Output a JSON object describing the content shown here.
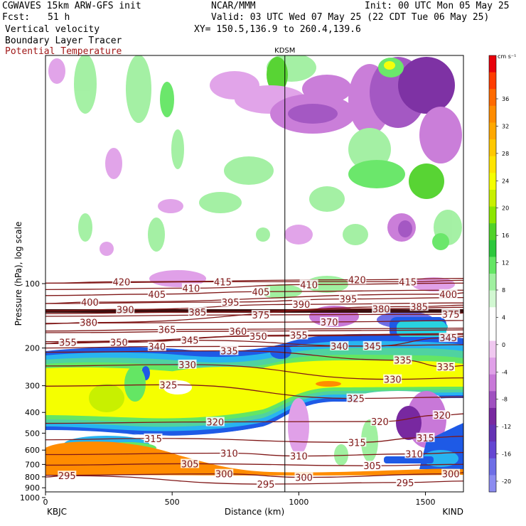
{
  "header": {
    "model": "CGWAVES 15km ARW-GFS init",
    "center": "NCAR/MMM",
    "init": "Init: 00 UTC Mon 05 May 25",
    "fcst_label": "Fcst:",
    "fcst_value": "51 h",
    "valid": "Valid: 03 UTC Wed 07 May 25 (22 CDT Tue 06 May 25)",
    "xy": "XY= 150.5,136.9 to 260.4,139.6",
    "field1": "Vertical velocity",
    "field2": "Boundary Layer Tracer",
    "field3": "Potential Temperature"
  },
  "chart_data": {
    "type": "heatmap",
    "title": "",
    "xlabel": "Distance (km)",
    "ylabel": "Pressure (hPa), log scale",
    "x_ticks": [
      "0",
      "500",
      "1000",
      "1500"
    ],
    "y_ticks": [
      "100",
      "200",
      "300",
      "400",
      "500",
      "600",
      "700",
      "800",
      "900",
      "1000"
    ],
    "xlim": [
      0,
      1650
    ],
    "ylog": true,
    "left_station": "KBJC",
    "right_station": "KIND",
    "marker_label": "KDSM",
    "marker_x_km": 945,
    "colorbar": {
      "units": "cm s⁻¹",
      "labels": [
        "36",
        "32",
        "28",
        "24",
        "20",
        "16",
        "12",
        "8",
        "4",
        "0",
        "-4",
        "-8",
        "-12",
        "-16",
        "-20"
      ],
      "colors": [
        "#e8000b",
        "#ff3c00",
        "#ff6a00",
        "#ff8c00",
        "#ffa800",
        "#ffc800",
        "#ffe400",
        "#f5ff00",
        "#c8f000",
        "#8ce600",
        "#50d22a",
        "#2cc83c",
        "#64e664",
        "#a0f0a0",
        "#d2f8d2",
        "#ffffff",
        "#ffffff",
        "#f0c8f0",
        "#e0a0e8",
        "#c878d8",
        "#a050c0",
        "#7828a0",
        "#6432b4",
        "#6446d2",
        "#6e6ee6",
        "#8c8cf0"
      ]
    },
    "theta_contours": [
      {
        "label": "420",
        "x_km": 300,
        "p": 98
      },
      {
        "label": "415",
        "x_km": 700,
        "p": 98
      },
      {
        "label": "420",
        "x_km": 1230,
        "p": 96
      },
      {
        "label": "415",
        "x_km": 1430,
        "p": 98
      },
      {
        "label": "410",
        "x_km": 575,
        "p": 105
      },
      {
        "label": "410",
        "x_km": 1040,
        "p": 101
      },
      {
        "label": "405",
        "x_km": 440,
        "p": 112
      },
      {
        "label": "405",
        "x_km": 850,
        "p": 109
      },
      {
        "label": "400",
        "x_km": 175,
        "p": 122
      },
      {
        "label": "400",
        "x_km": 1590,
        "p": 112
      },
      {
        "label": "395",
        "x_km": 730,
        "p": 122
      },
      {
        "label": "395",
        "x_km": 1195,
        "p": 118
      },
      {
        "label": "390",
        "x_km": 315,
        "p": 132
      },
      {
        "label": "390",
        "x_km": 1010,
        "p": 125
      },
      {
        "label": "385",
        "x_km": 600,
        "p": 136
      },
      {
        "label": "385",
        "x_km": 1475,
        "p": 128
      },
      {
        "label": "380",
        "x_km": 1325,
        "p": 131
      },
      {
        "label": "380",
        "x_km": 170,
        "p": 152
      },
      {
        "label": "375",
        "x_km": 850,
        "p": 140
      },
      {
        "label": "375",
        "x_km": 1600,
        "p": 139
      },
      {
        "label": "370",
        "x_km": 1120,
        "p": 151
      },
      {
        "label": "365",
        "x_km": 480,
        "p": 164
      },
      {
        "label": "360",
        "x_km": 760,
        "p": 167
      },
      {
        "label": "355",
        "x_km": 88,
        "p": 188
      },
      {
        "label": "355",
        "x_km": 1000,
        "p": 174
      },
      {
        "label": "350",
        "x_km": 290,
        "p": 188
      },
      {
        "label": "350",
        "x_km": 840,
        "p": 176
      },
      {
        "label": "345",
        "x_km": 570,
        "p": 184
      },
      {
        "label": "345",
        "x_km": 1290,
        "p": 196
      },
      {
        "label": "345",
        "x_km": 1590,
        "p": 179
      },
      {
        "label": "340",
        "x_km": 440,
        "p": 197
      },
      {
        "label": "340",
        "x_km": 1160,
        "p": 196
      },
      {
        "label": "335",
        "x_km": 725,
        "p": 206
      },
      {
        "label": "335",
        "x_km": 1410,
        "p": 228
      },
      {
        "label": "335",
        "x_km": 1580,
        "p": 245
      },
      {
        "label": "330",
        "x_km": 560,
        "p": 239
      },
      {
        "label": "330",
        "x_km": 1370,
        "p": 280
      },
      {
        "label": "325",
        "x_km": 485,
        "p": 297
      },
      {
        "label": "325",
        "x_km": 1225,
        "p": 344
      },
      {
        "label": "320",
        "x_km": 670,
        "p": 443
      },
      {
        "label": "320",
        "x_km": 1320,
        "p": 441
      },
      {
        "label": "320",
        "x_km": 1565,
        "p": 412
      },
      {
        "label": "315",
        "x_km": 425,
        "p": 529
      },
      {
        "label": "315",
        "x_km": 1230,
        "p": 552
      },
      {
        "label": "315",
        "x_km": 1500,
        "p": 525
      },
      {
        "label": "310",
        "x_km": 725,
        "p": 620
      },
      {
        "label": "310",
        "x_km": 1000,
        "p": 640
      },
      {
        "label": "310",
        "x_km": 1455,
        "p": 625
      },
      {
        "label": "305",
        "x_km": 570,
        "p": 695
      },
      {
        "label": "305",
        "x_km": 1290,
        "p": 710
      },
      {
        "label": "300",
        "x_km": 705,
        "p": 775
      },
      {
        "label": "300",
        "x_km": 1020,
        "p": 805
      },
      {
        "label": "300",
        "x_km": 1600,
        "p": 775
      },
      {
        "label": "295",
        "x_km": 85,
        "p": 790
      },
      {
        "label": "295",
        "x_km": 870,
        "p": 865
      },
      {
        "label": "295",
        "x_km": 1420,
        "p": 850
      }
    ]
  }
}
